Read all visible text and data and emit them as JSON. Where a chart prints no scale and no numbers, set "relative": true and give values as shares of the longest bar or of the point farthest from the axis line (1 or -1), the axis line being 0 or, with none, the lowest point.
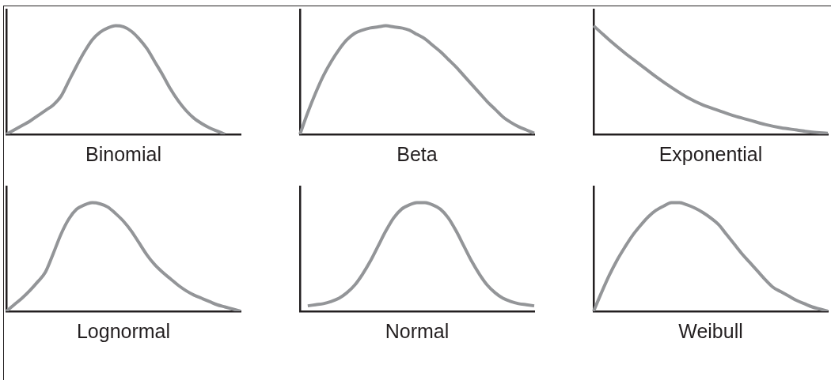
{
  "chart_data": [
    {
      "type": "line",
      "xlabel": "Binomial",
      "relative": true,
      "color": "#939598",
      "categories": [
        null,
        null,
        null,
        null,
        null,
        null,
        null,
        null,
        null,
        null,
        null,
        null,
        null,
        null,
        null,
        null,
        null,
        null,
        null,
        null,
        null,
        null,
        null,
        null,
        null,
        null,
        null,
        null,
        null,
        null,
        null
      ],
      "values": [
        0,
        0.04,
        0.08,
        0.12,
        0.17,
        0.22,
        0.27,
        0.35,
        0.49,
        0.63,
        0.76,
        0.87,
        0.94,
        0.98,
        1,
        0.99,
        0.95,
        0.88,
        0.79,
        0.67,
        0.55,
        0.42,
        0.31,
        0.22,
        0.15,
        0.1,
        0.06,
        0.03,
        0,
        null,
        null
      ]
    },
    {
      "type": "line",
      "xlabel": "Beta",
      "relative": true,
      "color": "#939598",
      "categories": [
        null,
        null,
        null,
        null,
        null,
        null,
        null,
        null,
        null,
        null,
        null,
        null,
        null,
        null,
        null,
        null,
        null,
        null,
        null,
        null,
        null,
        null,
        null,
        null,
        null,
        null,
        null,
        null,
        null,
        null,
        null
      ],
      "values": [
        0,
        0.2,
        0.38,
        0.54,
        0.67,
        0.78,
        0.87,
        0.93,
        0.96,
        0.98,
        0.99,
        1,
        0.99,
        0.98,
        0.96,
        0.92,
        0.88,
        0.82,
        0.76,
        0.69,
        0.62,
        0.54,
        0.46,
        0.38,
        0.3,
        0.23,
        0.16,
        0.11,
        0.07,
        0.04,
        0.01
      ]
    },
    {
      "type": "line",
      "xlabel": "Exponential",
      "relative": true,
      "color": "#939598",
      "categories": [
        null,
        null,
        null,
        null,
        null,
        null,
        null,
        null,
        null,
        null,
        null,
        null,
        null,
        null,
        null,
        null
      ],
      "values": [
        1,
        0.87,
        0.75,
        0.64,
        0.53,
        0.43,
        0.34,
        0.27,
        0.22,
        0.17,
        0.13,
        0.09,
        0.06,
        0.04,
        0.02,
        0.01
      ]
    },
    {
      "type": "line",
      "xlabel": "Lognormal",
      "relative": true,
      "color": "#939598",
      "categories": [
        null,
        null,
        null,
        null,
        null,
        null,
        null,
        null,
        null,
        null,
        null,
        null,
        null,
        null,
        null,
        null,
        null,
        null,
        null,
        null,
        null,
        null,
        null,
        null,
        null,
        null,
        null,
        null,
        null,
        null,
        null
      ],
      "values": [
        0,
        0.06,
        0.12,
        0.19,
        0.27,
        0.36,
        0.53,
        0.71,
        0.85,
        0.94,
        0.98,
        1,
        0.99,
        0.96,
        0.9,
        0.83,
        0.74,
        0.63,
        0.52,
        0.43,
        0.36,
        0.3,
        0.24,
        0.19,
        0.15,
        0.12,
        0.09,
        0.06,
        0.04,
        0.02,
        0
      ]
    },
    {
      "type": "line",
      "xlabel": "Normal",
      "relative": true,
      "color": "#939598",
      "categories": [
        null,
        null,
        null,
        null,
        null,
        null,
        null,
        null,
        null,
        null,
        null,
        null,
        null,
        null,
        null,
        null,
        null,
        null,
        null,
        null,
        null,
        null,
        null,
        null,
        null,
        null,
        null,
        null,
        null,
        null,
        null
      ],
      "values": [
        null,
        0.05,
        0.06,
        0.07,
        0.09,
        0.12,
        0.17,
        0.24,
        0.34,
        0.46,
        0.6,
        0.74,
        0.86,
        0.94,
        0.98,
        1,
        1,
        0.98,
        0.94,
        0.86,
        0.74,
        0.6,
        0.46,
        0.34,
        0.24,
        0.17,
        0.12,
        0.09,
        0.07,
        0.06,
        0.05
      ]
    },
    {
      "type": "line",
      "xlabel": "Weibull",
      "relative": true,
      "color": "#939598",
      "categories": [
        null,
        null,
        null,
        null,
        null,
        null,
        null,
        null,
        null,
        null,
        null,
        null,
        null,
        null,
        null,
        null,
        null,
        null,
        null,
        null,
        null,
        null,
        null,
        null,
        null,
        null,
        null,
        null,
        null,
        null,
        null
      ],
      "values": [
        0,
        0.17,
        0.33,
        0.47,
        0.59,
        0.7,
        0.79,
        0.87,
        0.93,
        0.97,
        1,
        1,
        0.98,
        0.95,
        0.91,
        0.86,
        0.8,
        0.71,
        0.62,
        0.53,
        0.45,
        0.37,
        0.29,
        0.22,
        0.18,
        0.14,
        0.1,
        0.07,
        0.04,
        0.02,
        0
      ]
    }
  ]
}
